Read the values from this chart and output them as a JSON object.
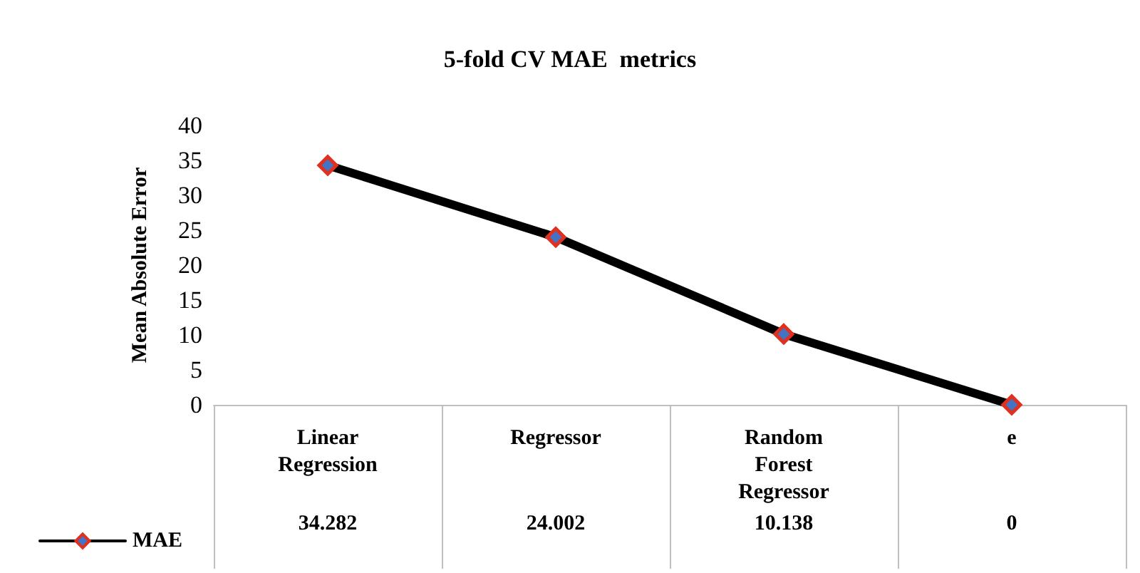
{
  "chart_data": {
    "type": "line",
    "title": "5-fold CV MAE  metrics",
    "ylabel": "Mean Absolute Error",
    "categories": [
      "Linear Regression",
      "Regressor",
      "Random Forest Regressor",
      "e"
    ],
    "series": [
      {
        "name": "MAE",
        "color": "#000000",
        "values": [
          34.282,
          24.002,
          10.138,
          0
        ]
      }
    ],
    "ylim": [
      0,
      40
    ],
    "yticks": [
      0,
      5,
      10,
      15,
      20,
      25,
      30,
      35,
      40
    ],
    "grid": false,
    "legend": "bottom left",
    "marker": "diamond",
    "line_style": "solid",
    "data_labels": true
  }
}
